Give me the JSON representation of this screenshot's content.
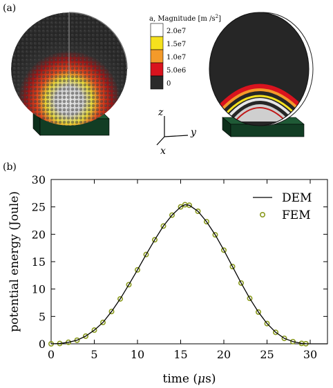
{
  "panel_a": {
    "label": "(a)",
    "colorbar": {
      "title": "a, Magnitude [m /s",
      "title_sup": "2",
      "title_end": "]",
      "ticks": [
        "2.0e7",
        "1.5e7",
        "1.0e7",
        "5.0e6",
        "0"
      ],
      "colors": [
        "#ffffff",
        "#f5e11e",
        "#f39a2a",
        "#d9131e",
        "#2a2a2a"
      ]
    },
    "axes_labels": {
      "z": "z",
      "y": "y",
      "x": "x"
    },
    "colors": {
      "particle_base": "#2a2a2a",
      "platform": "#123d24",
      "hot": "#d9131e",
      "warm": "#f39a2a",
      "yellow": "#f5e11e",
      "light": "#d6d6d6"
    }
  },
  "panel_b": {
    "label": "(b)",
    "chart_data": {
      "type": "line",
      "xlabel_pre": "time (",
      "xlabel_unit": "μ",
      "xlabel_post": "s)",
      "ylabel": "potential energy (Joule)",
      "xlim": [
        0,
        32
      ],
      "ylim": [
        0,
        30
      ],
      "xticks": [
        0,
        5,
        10,
        15,
        20,
        25,
        30
      ],
      "yticks": [
        0,
        5,
        10,
        15,
        20,
        25,
        30
      ],
      "legend_position": "top-right",
      "series": [
        {
          "name": "DEM",
          "style": "line",
          "color": "#000000",
          "x": [
            0,
            1,
            2,
            3,
            4,
            5,
            6,
            7,
            8,
            9,
            10,
            11,
            12,
            13,
            14,
            15,
            15.5,
            16,
            17,
            18,
            19,
            20,
            21,
            22,
            23,
            24,
            25,
            26,
            27,
            28,
            29,
            29.5,
            30,
            32
          ],
          "y": [
            0,
            0.06,
            0.28,
            0.66,
            1.4,
            2.5,
            3.9,
            5.9,
            8.2,
            10.8,
            13.5,
            16.3,
            19.0,
            21.5,
            23.5,
            25.0,
            25.4,
            25.3,
            24.2,
            22.3,
            19.9,
            17.1,
            14.1,
            11.1,
            8.3,
            5.8,
            3.7,
            2.1,
            1.0,
            0.4,
            0.08,
            0.02,
            0,
            0
          ]
        },
        {
          "name": "FEM",
          "style": "markers",
          "color": "#8a9a1e",
          "x": [
            0,
            1,
            2,
            3,
            4,
            5,
            6,
            7,
            8,
            9,
            10,
            11,
            12,
            13,
            14,
            15,
            15.5,
            16,
            17,
            18,
            19,
            20,
            21,
            22,
            23,
            24,
            25,
            26,
            27,
            28,
            29,
            29.5
          ],
          "y": [
            0,
            0.06,
            0.28,
            0.66,
            1.4,
            2.5,
            3.9,
            5.9,
            8.2,
            10.8,
            13.5,
            16.3,
            19.0,
            21.5,
            23.5,
            25.0,
            25.4,
            25.3,
            24.2,
            22.3,
            19.9,
            17.1,
            14.1,
            11.1,
            8.3,
            5.8,
            3.7,
            2.1,
            1.0,
            0.4,
            0.08,
            0.02
          ]
        }
      ]
    }
  }
}
